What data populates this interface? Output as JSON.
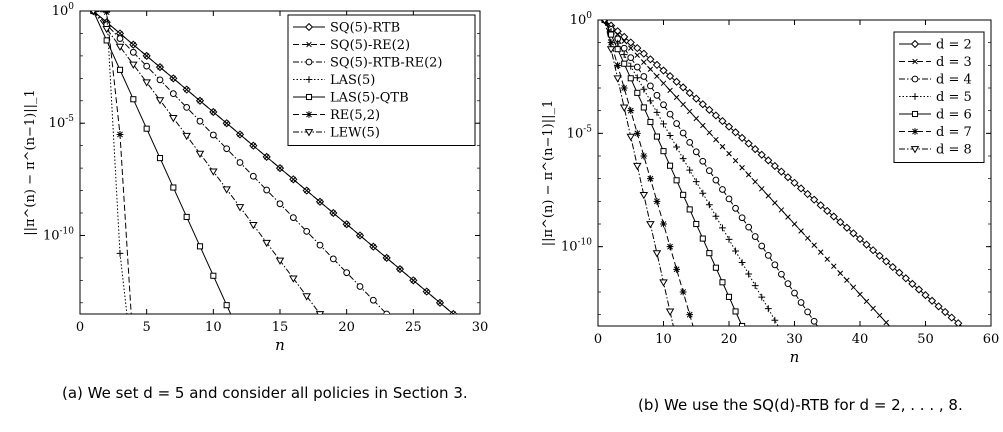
{
  "chart_data": [
    {
      "type": "line",
      "title": "",
      "ylabel": "||π^(n) − π^(n−1)||_1",
      "xlabel": "n",
      "xlim": [
        0,
        30
      ],
      "ylim_log10": [
        -13.5,
        0
      ],
      "yscale": "log",
      "x_ticks": [
        "0",
        "5",
        "10",
        "15",
        "20",
        "25",
        "30"
      ],
      "y_ticks": [
        "10^0",
        "10^-5",
        "10^-10"
      ],
      "legend_position": "top-right",
      "series": [
        {
          "name": "SQ(5)-RTB",
          "marker": "diamond",
          "dash": "solid",
          "x": [
            1,
            28
          ],
          "log10_y": [
            0,
            -13.5
          ]
        },
        {
          "name": "SQ(5)-RE(2)",
          "marker": "cross",
          "dash": "dashed",
          "x": [
            1,
            28
          ],
          "log10_y": [
            0,
            -13.5
          ]
        },
        {
          "name": "SQ(5)-RTB-RE(2)",
          "marker": "circle",
          "dash": "dashdot",
          "x": [
            1,
            23
          ],
          "log10_y": [
            0,
            -13.5
          ]
        },
        {
          "name": "LAS(5)",
          "marker": "plus",
          "dash": "dotted",
          "x": [
            1,
            2,
            3,
            4
          ],
          "log10_y": [
            0,
            -0.05,
            -10.8,
            -16
          ]
        },
        {
          "name": "LAS(5)-QTB",
          "marker": "square",
          "dash": "solid",
          "x": [
            1,
            11.3
          ],
          "log10_y": [
            0,
            -13.5
          ]
        },
        {
          "name": "RE(5,2)",
          "marker": "asterisk",
          "dash": "dashed",
          "x": [
            1,
            2,
            3,
            4
          ],
          "log10_y": [
            0,
            -0.05,
            -5.5,
            -15
          ]
        },
        {
          "name": "LEW(5)",
          "marker": "triangle-down",
          "dash": "dashdot",
          "x": [
            1,
            18
          ],
          "log10_y": [
            0,
            -13.5
          ]
        }
      ]
    },
    {
      "type": "line",
      "title": "",
      "ylabel": "||π^(n) − π^(n−1)||_1",
      "xlabel": "n",
      "xlim": [
        0,
        60
      ],
      "ylim_log10": [
        -13.5,
        0
      ],
      "yscale": "log",
      "x_ticks": [
        "0",
        "10",
        "20",
        "30",
        "40",
        "50",
        "60"
      ],
      "y_ticks": [
        "10^0",
        "10^-5",
        "10^-10"
      ],
      "legend_position": "top-right",
      "series": [
        {
          "name": "d = 2",
          "marker": "diamond",
          "dash": "solid",
          "x": [
            1,
            55.5
          ],
          "log10_y": [
            0,
            -13.5
          ]
        },
        {
          "name": "d = 3",
          "marker": "cross",
          "dash": "dashed",
          "x": [
            1,
            44.5
          ],
          "log10_y": [
            0,
            -13.5
          ]
        },
        {
          "name": "d = 4",
          "marker": "circle",
          "dash": "dashdot",
          "x": [
            1,
            33.5
          ],
          "log10_y": [
            0,
            -13.5
          ]
        },
        {
          "name": "d = 5",
          "marker": "plus",
          "dash": "dotted",
          "x": [
            1,
            27.5
          ],
          "log10_y": [
            0,
            -13.5
          ]
        },
        {
          "name": "d = 6",
          "marker": "square",
          "dash": "solid",
          "x": [
            1,
            22
          ],
          "log10_y": [
            0,
            -13.5
          ]
        },
        {
          "name": "d = 7",
          "marker": "asterisk",
          "dash": "dashed",
          "x": [
            1,
            14.5
          ],
          "log10_y": [
            0,
            -13.5
          ]
        },
        {
          "name": "d = 8",
          "marker": "triangle-down",
          "dash": "dashdot",
          "x": [
            1,
            11.5
          ],
          "log10_y": [
            0,
            -13.5
          ]
        }
      ]
    }
  ],
  "captions": {
    "a": "(a) We set d = 5 and consider all policies in Section 3.",
    "b": "(b) We use the SQ(d)-RTB for d = 2, . . . , 8."
  }
}
